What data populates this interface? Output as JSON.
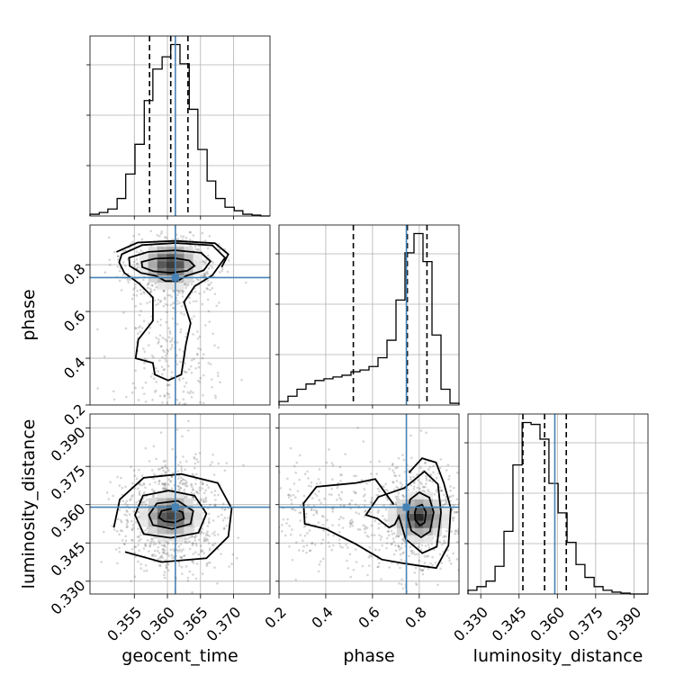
{
  "chart_data": {
    "type": "corner",
    "parameters": [
      "geocent_time",
      "phase",
      "luminosity_distance"
    ],
    "truths": {
      "geocent_time": 0.3612,
      "phase": 0.745,
      "luminosity_distance": 0.359
    },
    "quantiles": {
      "geocent_time": [
        0.3573,
        0.3605,
        0.3631
      ],
      "phase": [
        0.518,
        0.749,
        0.833
      ],
      "luminosity_distance": [
        0.3465,
        0.355,
        0.3635
      ]
    },
    "ranges": {
      "geocent_time": [
        0.3483,
        0.3755
      ],
      "phase": [
        0.2,
        0.97
      ],
      "luminosity_distance": [
        0.325,
        0.3955
      ]
    },
    "ticks": {
      "geocent_time": [
        "0.355",
        "0.360",
        "0.365",
        "0.370"
      ],
      "phase": [
        "0.2",
        "0.4",
        "0.6",
        "0.8"
      ],
      "luminosity_distance": [
        "0.330",
        "0.345",
        "0.360",
        "0.375",
        "0.390"
      ]
    },
    "histograms": {
      "geocent_time": {
        "bins": [
          0.3483,
          0.3497,
          0.351,
          0.3524,
          0.3537,
          0.3551,
          0.3565,
          0.3578,
          0.3592,
          0.3605,
          0.3619,
          0.3633,
          0.3646,
          0.366,
          0.3673,
          0.3687,
          0.3701,
          0.3714,
          0.3728,
          0.3741,
          0.3755
        ],
        "counts": [
          0.01,
          0.02,
          0.04,
          0.1,
          0.24,
          0.41,
          0.66,
          0.84,
          0.91,
          0.98,
          0.87,
          0.61,
          0.38,
          0.2,
          0.1,
          0.05,
          0.03,
          0.01,
          0.005,
          0.0
        ]
      },
      "phase": {
        "bins": [
          0.2,
          0.2385,
          0.277,
          0.3155,
          0.354,
          0.3925,
          0.431,
          0.4695,
          0.508,
          0.5465,
          0.585,
          0.6235,
          0.662,
          0.7005,
          0.739,
          0.7775,
          0.816,
          0.8545,
          0.893,
          0.9315,
          0.97
        ],
        "counts": [
          0.02,
          0.05,
          0.09,
          0.12,
          0.14,
          0.15,
          0.16,
          0.17,
          0.19,
          0.2,
          0.22,
          0.27,
          0.37,
          0.6,
          0.87,
          0.98,
          0.82,
          0.4,
          0.09,
          0.01
        ]
      },
      "luminosity_distance": {
        "bins": [
          0.325,
          0.3285,
          0.3321,
          0.3356,
          0.3391,
          0.3426,
          0.3462,
          0.3497,
          0.3532,
          0.3567,
          0.3603,
          0.3638,
          0.3673,
          0.3708,
          0.3744,
          0.3779,
          0.3814,
          0.3849,
          0.3885,
          0.392,
          0.3955
        ],
        "counts": [
          0.02,
          0.04,
          0.07,
          0.15,
          0.34,
          0.7,
          0.93,
          0.92,
          0.84,
          0.6,
          0.44,
          0.28,
          0.16,
          0.09,
          0.04,
          0.02,
          0.01,
          0.005,
          0.0,
          0.0
        ]
      }
    },
    "joint": [
      {
        "x": "geocent_time",
        "y": "phase",
        "peak": [
          0.3605,
          0.8
        ],
        "contours": [
          [
            [
              0.3561,
              0.812
            ],
            [
              0.3581,
              0.826
            ],
            [
              0.3609,
              0.829
            ],
            [
              0.3633,
              0.818
            ],
            [
              0.3641,
              0.795
            ],
            [
              0.363,
              0.774
            ],
            [
              0.3605,
              0.765
            ],
            [
              0.3579,
              0.772
            ],
            [
              0.3562,
              0.79
            ]
          ],
          [
            [
              0.3542,
              0.83
            ],
            [
              0.3571,
              0.855
            ],
            [
              0.3612,
              0.862
            ],
            [
              0.3651,
              0.851
            ],
            [
              0.3665,
              0.815
            ],
            [
              0.3655,
              0.776
            ],
            [
              0.3628,
              0.752
            ],
            [
              0.3615,
              0.73
            ],
            [
              0.3597,
              0.73
            ],
            [
              0.3583,
              0.752
            ],
            [
              0.356,
              0.765
            ],
            [
              0.3543,
              0.795
            ]
          ],
          [
            [
              0.3531,
              0.845
            ],
            [
              0.3562,
              0.884
            ],
            [
              0.3612,
              0.893
            ],
            [
              0.3668,
              0.883
            ],
            [
              0.3687,
              0.83
            ],
            [
              0.3668,
              0.755
            ],
            [
              0.3641,
              0.708
            ],
            [
              0.3625,
              0.64
            ],
            [
              0.3635,
              0.55
            ],
            [
              0.3628,
              0.46
            ],
            [
              0.3621,
              0.33
            ],
            [
              0.3601,
              0.305
            ],
            [
              0.3581,
              0.33
            ],
            [
              0.3578,
              0.38
            ],
            [
              0.3552,
              0.4
            ],
            [
              0.3556,
              0.48
            ],
            [
              0.3578,
              0.56
            ],
            [
              0.3578,
              0.66
            ],
            [
              0.3557,
              0.72
            ],
            [
              0.3535,
              0.765
            ],
            [
              0.3527,
              0.81
            ]
          ],
          [
            [
              0.3523,
              0.855
            ],
            [
              0.3555,
              0.895
            ],
            [
              0.3612,
              0.902
            ],
            [
              0.3672,
              0.892
            ],
            [
              0.3692,
              0.845
            ],
            [
              0.3682,
              0.79
            ]
          ]
        ]
      },
      {
        "x": "geocent_time",
        "y": "luminosity_distance",
        "peak": [
          0.3605,
          0.3555
        ],
        "contours": [
          [
            [
              0.3595,
              0.3535
            ],
            [
              0.3611,
              0.353
            ],
            [
              0.3625,
              0.3545
            ],
            [
              0.3623,
              0.357
            ],
            [
              0.3607,
              0.3585
            ],
            [
              0.3591,
              0.3575
            ],
            [
              0.3587,
              0.355
            ]
          ],
          [
            [
              0.3578,
              0.352
            ],
            [
              0.3607,
              0.3505
            ],
            [
              0.3635,
              0.3525
            ],
            [
              0.3639,
              0.3575
            ],
            [
              0.3616,
              0.3615
            ],
            [
              0.3584,
              0.3605
            ],
            [
              0.3572,
              0.356
            ]
          ],
          [
            [
              0.3564,
              0.3485
            ],
            [
              0.3605,
              0.347
            ],
            [
              0.3647,
              0.349
            ],
            [
              0.3659,
              0.3565
            ],
            [
              0.3641,
              0.3635
            ],
            [
              0.3602,
              0.3655
            ],
            [
              0.3563,
              0.3635
            ],
            [
              0.3551,
              0.356
            ]
          ],
          [
            [
              0.3536,
              0.3415
            ],
            [
              0.3591,
              0.3375
            ],
            [
              0.3659,
              0.339
            ],
            [
              0.3692,
              0.3475
            ],
            [
              0.3697,
              0.3585
            ],
            [
              0.3676,
              0.3685
            ],
            [
              0.3621,
              0.372
            ],
            [
              0.3564,
              0.3705
            ],
            [
              0.3528,
              0.362
            ],
            [
              0.3519,
              0.351
            ]
          ]
        ]
      },
      {
        "x": "phase",
        "y": "luminosity_distance",
        "peak": [
          0.8,
          0.355
        ],
        "contours": [
          [
            [
              0.783,
              0.354
            ],
            [
              0.803,
              0.3518
            ],
            [
              0.823,
              0.353
            ],
            [
              0.829,
              0.357
            ],
            [
              0.812,
              0.36
            ],
            [
              0.789,
              0.3592
            ],
            [
              0.781,
              0.357
            ]
          ],
          [
            [
              0.75,
              0.3555
            ],
            [
              0.766,
              0.3498
            ],
            [
              0.808,
              0.3472
            ],
            [
              0.846,
              0.3495
            ],
            [
              0.862,
              0.357
            ],
            [
              0.843,
              0.3628
            ],
            [
              0.8,
              0.3648
            ],
            [
              0.761,
              0.362
            ]
          ],
          [
            [
              0.713,
              0.3555
            ],
            [
              0.742,
              0.3465
            ],
            [
              0.813,
              0.341
            ],
            [
              0.875,
              0.3435
            ],
            [
              0.893,
              0.357
            ],
            [
              0.88,
              0.368
            ],
            [
              0.822,
              0.373
            ],
            [
              0.776,
              0.3695
            ],
            [
              0.735,
              0.3665
            ],
            [
              0.625,
              0.363
            ],
            [
              0.572,
              0.356
            ],
            [
              0.622,
              0.3545
            ],
            [
              0.671,
              0.351
            ],
            [
              0.695,
              0.3522
            ]
          ],
          [
            [
              0.691,
              0.36
            ],
            [
              0.612,
              0.37
            ],
            [
              0.53,
              0.3685
            ],
            [
              0.36,
              0.367
            ],
            [
              0.305,
              0.3605
            ],
            [
              0.31,
              0.3525
            ],
            [
              0.4,
              0.3505
            ],
            [
              0.53,
              0.3445
            ],
            [
              0.64,
              0.3385
            ],
            [
              0.72,
              0.3372
            ],
            [
              0.79,
              0.3362
            ],
            [
              0.873,
              0.3352
            ],
            [
              0.925,
              0.344
            ],
            [
              0.935,
              0.3585
            ],
            [
              0.905,
              0.3685
            ],
            [
              0.872,
              0.3765
            ],
            [
              0.812,
              0.3782
            ],
            [
              0.756,
              0.3725
            ]
          ]
        ]
      }
    ]
  }
}
